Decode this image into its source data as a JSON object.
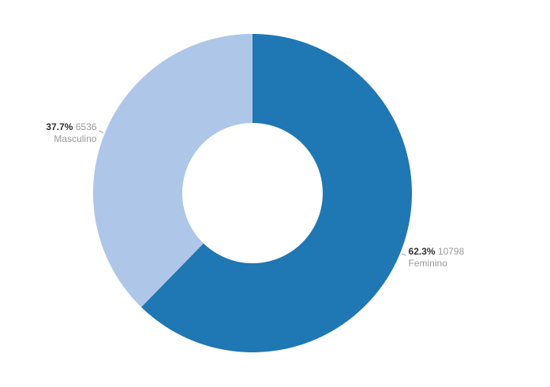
{
  "chart_data": {
    "type": "pie",
    "donut": true,
    "slices": [
      {
        "label": "Feminino",
        "value": 10798,
        "percent": "62.3%",
        "color": "#1f77b4"
      },
      {
        "label": "Masculino",
        "value": 6536,
        "percent": "37.7%",
        "color": "#aec7e8"
      }
    ],
    "title": "",
    "legend": "none",
    "start_angle": "top",
    "direction": "clockwise"
  }
}
